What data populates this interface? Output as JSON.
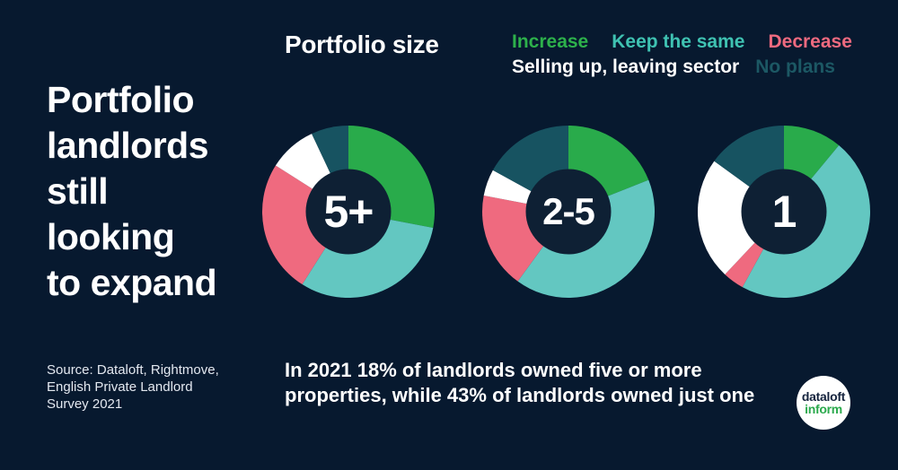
{
  "page": {
    "background_color": "#07192f",
    "title_lines": [
      "Portfolio",
      "landlords",
      "still",
      "looking",
      "to expand"
    ],
    "source_lines": [
      "Source: Dataloft, Rightmove,",
      "English Private Landlord",
      "Survey 2021"
    ],
    "footnote_lines": [
      "In 2021 18% of landlords owned five or more",
      "properties, while 43% of landlords owned just one"
    ]
  },
  "logo": {
    "line1": "dataloft",
    "line2": "inform",
    "line1_color": "#16243e",
    "line2_color": "#2aa94c"
  },
  "chart_data": {
    "type": "pie",
    "variant": "donut",
    "title": "Portfolio size",
    "start_angle_deg": 0,
    "direction": "clockwise",
    "hole_color": "#0e2034",
    "legend": [
      {
        "label": "Increase",
        "color": "#2db14b"
      },
      {
        "label": "Keep the same",
        "color": "#3fc2b2"
      },
      {
        "label": "Decrease",
        "color": "#ef6a7f"
      },
      {
        "label": "Selling up, leaving sector",
        "color": "#ffffff"
      },
      {
        "label": "No plans",
        "color": "#1c5864"
      }
    ],
    "categories": [
      "Increase",
      "Keep the same",
      "Decrease",
      "Selling up, leaving sector",
      "No plans"
    ],
    "segment_colors": [
      "#29ab4b",
      "#63c7c1",
      "#ef6a7f",
      "#ffffff",
      "#175361"
    ],
    "donuts": [
      {
        "label": "5+",
        "values_pct": [
          28,
          31,
          25,
          9,
          7
        ]
      },
      {
        "label": "2-5",
        "values_pct": [
          19,
          41,
          18,
          5,
          17
        ]
      },
      {
        "label": "1",
        "values_pct": [
          11,
          47,
          4,
          23,
          15
        ]
      }
    ]
  }
}
